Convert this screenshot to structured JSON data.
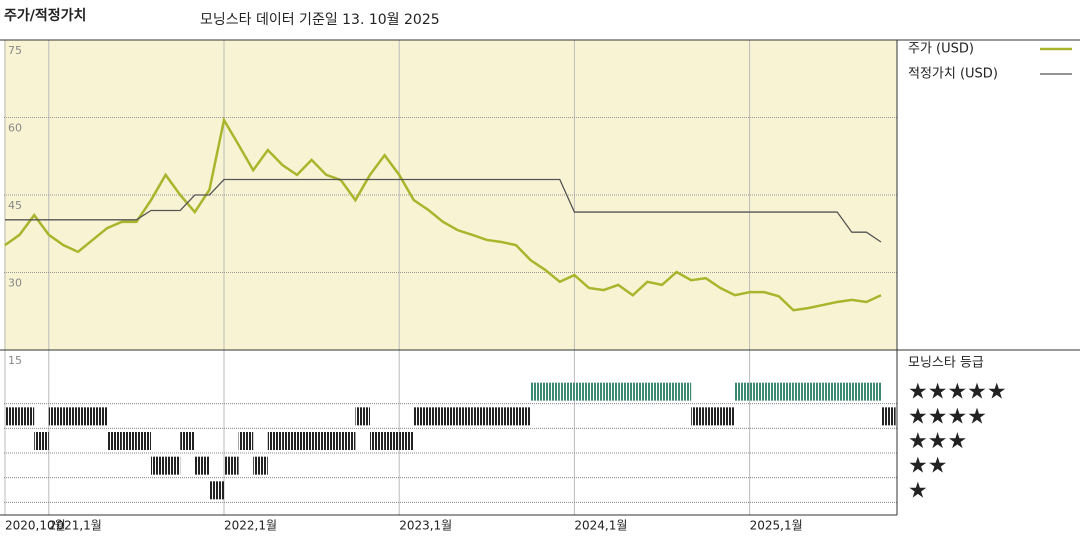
{
  "chart_data": [
    {
      "type": "line",
      "title": "주가/적정가치",
      "subtitle": "모닝스타 데이터 기준일 13. 10월 2025",
      "x": [
        "2020-10",
        "2020-11",
        "2020-12",
        "2021-01",
        "2021-02",
        "2021-03",
        "2021-04",
        "2021-05",
        "2021-06",
        "2021-07",
        "2021-08",
        "2021-09",
        "2021-10",
        "2021-11",
        "2021-12",
        "2022-01",
        "2022-02",
        "2022-03",
        "2022-04",
        "2022-05",
        "2022-06",
        "2022-07",
        "2022-08",
        "2022-09",
        "2022-10",
        "2022-11",
        "2022-12",
        "2023-01",
        "2023-02",
        "2023-03",
        "2023-04",
        "2023-05",
        "2023-06",
        "2023-07",
        "2023-08",
        "2023-09",
        "2023-10",
        "2023-11",
        "2023-12",
        "2024-01",
        "2024-02",
        "2024-03",
        "2024-04",
        "2024-05",
        "2024-06",
        "2024-07",
        "2024-08",
        "2024-09",
        "2024-10",
        "2024-11",
        "2024-12",
        "2025-01",
        "2025-02",
        "2025-03",
        "2025-04",
        "2025-05",
        "2025-06",
        "2025-07",
        "2025-08",
        "2025-09",
        "2025-10"
      ],
      "series": [
        {
          "name": "주가 (USD)",
          "color": "#a9b52c",
          "values": [
            35.3,
            37.3,
            41.1,
            37.3,
            35.3,
            34,
            36.3,
            38.6,
            39.8,
            39.8,
            44,
            48.9,
            45,
            41.7,
            46,
            59.5,
            54.7,
            49.8,
            53.7,
            50.8,
            48.9,
            51.8,
            48.9,
            47.9,
            44,
            48.9,
            52.7,
            48.9,
            44,
            42.1,
            39.8,
            38.2,
            37.3,
            36.3,
            35.9,
            35.3,
            32.4,
            30.5,
            28.2,
            29.5,
            27,
            26.6,
            27.6,
            25.6,
            28.2,
            27.6,
            30.1,
            28.5,
            28.9,
            27,
            25.6,
            26.2,
            26.2,
            25.4,
            22.7,
            23.1,
            23.7,
            24.3,
            24.7,
            24.3,
            25.6
          ]
        },
        {
          "name": "적정가치 (USD)",
          "color": "#555555",
          "values": [
            40.2,
            40.2,
            40.2,
            40.2,
            40.2,
            40.2,
            40.2,
            40.2,
            40.2,
            40.2,
            42,
            42,
            42,
            45,
            45,
            48,
            48,
            48,
            48,
            48,
            48,
            48,
            48,
            48,
            48,
            48,
            48,
            48,
            48,
            48,
            48,
            48,
            48,
            48,
            48,
            48,
            48,
            48,
            48,
            41.7,
            41.7,
            41.7,
            41.7,
            41.7,
            41.7,
            41.7,
            41.7,
            41.7,
            41.7,
            41.7,
            41.7,
            41.7,
            41.7,
            41.7,
            41.7,
            41.7,
            41.7,
            41.7,
            37.8,
            37.8,
            35.9
          ]
        }
      ],
      "ylim": [
        15,
        75
      ],
      "yticks": [
        15,
        30,
        45,
        60,
        75
      ],
      "xticks": [
        {
          "value": "2020-10",
          "label": "2020,10월"
        },
        {
          "value": "2021-01",
          "label": "2021,1월"
        },
        {
          "value": "2022-01",
          "label": "2022,1월"
        },
        {
          "value": "2023-01",
          "label": "2023,1월"
        },
        {
          "value": "2024-01",
          "label": "2024,1월"
        },
        {
          "value": "2025-01",
          "label": "2025,1월"
        }
      ],
      "background": "#f8f4d3"
    },
    {
      "type": "rating",
      "title": "모닝스타 등급",
      "x": [
        "2020-10",
        "2020-11",
        "2020-12",
        "2021-01",
        "2021-02",
        "2021-03",
        "2021-04",
        "2021-05",
        "2021-06",
        "2021-07",
        "2021-08",
        "2021-09",
        "2021-10",
        "2021-11",
        "2021-12",
        "2022-01",
        "2022-02",
        "2022-03",
        "2022-04",
        "2022-05",
        "2022-06",
        "2022-07",
        "2022-08",
        "2022-09",
        "2022-10",
        "2022-11",
        "2022-12",
        "2023-01",
        "2023-02",
        "2023-03",
        "2023-04",
        "2023-05",
        "2023-06",
        "2023-07",
        "2023-08",
        "2023-09",
        "2023-10",
        "2023-11",
        "2023-12",
        "2024-01",
        "2024-02",
        "2024-03",
        "2024-04",
        "2024-05",
        "2024-06",
        "2024-07",
        "2024-08",
        "2024-09",
        "2024-10",
        "2024-11",
        "2024-12",
        "2025-01",
        "2025-02",
        "2025-03",
        "2025-04",
        "2025-05",
        "2025-06",
        "2025-07",
        "2025-08",
        "2025-09",
        "2025-10"
      ],
      "values": [
        4,
        4,
        3,
        4,
        4,
        4,
        4,
        3,
        3,
        3,
        2,
        2,
        3,
        2,
        1,
        2,
        3,
        2,
        3,
        3,
        3,
        3,
        3,
        3,
        4,
        3,
        3,
        3,
        4,
        4,
        4,
        4,
        4,
        4,
        4,
        4,
        5,
        5,
        5,
        5,
        5,
        5,
        5,
        5,
        5,
        5,
        5,
        4,
        4,
        4,
        5,
        5,
        5,
        5,
        5,
        5,
        5,
        5,
        5,
        5,
        4
      ],
      "ylim": [
        0,
        6
      ],
      "yticks": [
        {
          "value": 1,
          "label": "★"
        },
        {
          "value": 2,
          "label": "★★"
        },
        {
          "value": 3,
          "label": "★★★"
        },
        {
          "value": 4,
          "label": "★★★★"
        },
        {
          "value": 5,
          "label": "★★★★★"
        }
      ],
      "colors": [
        "#222222",
        "#222222",
        "#222222",
        "#222222",
        "#3d8a72"
      ]
    }
  ]
}
